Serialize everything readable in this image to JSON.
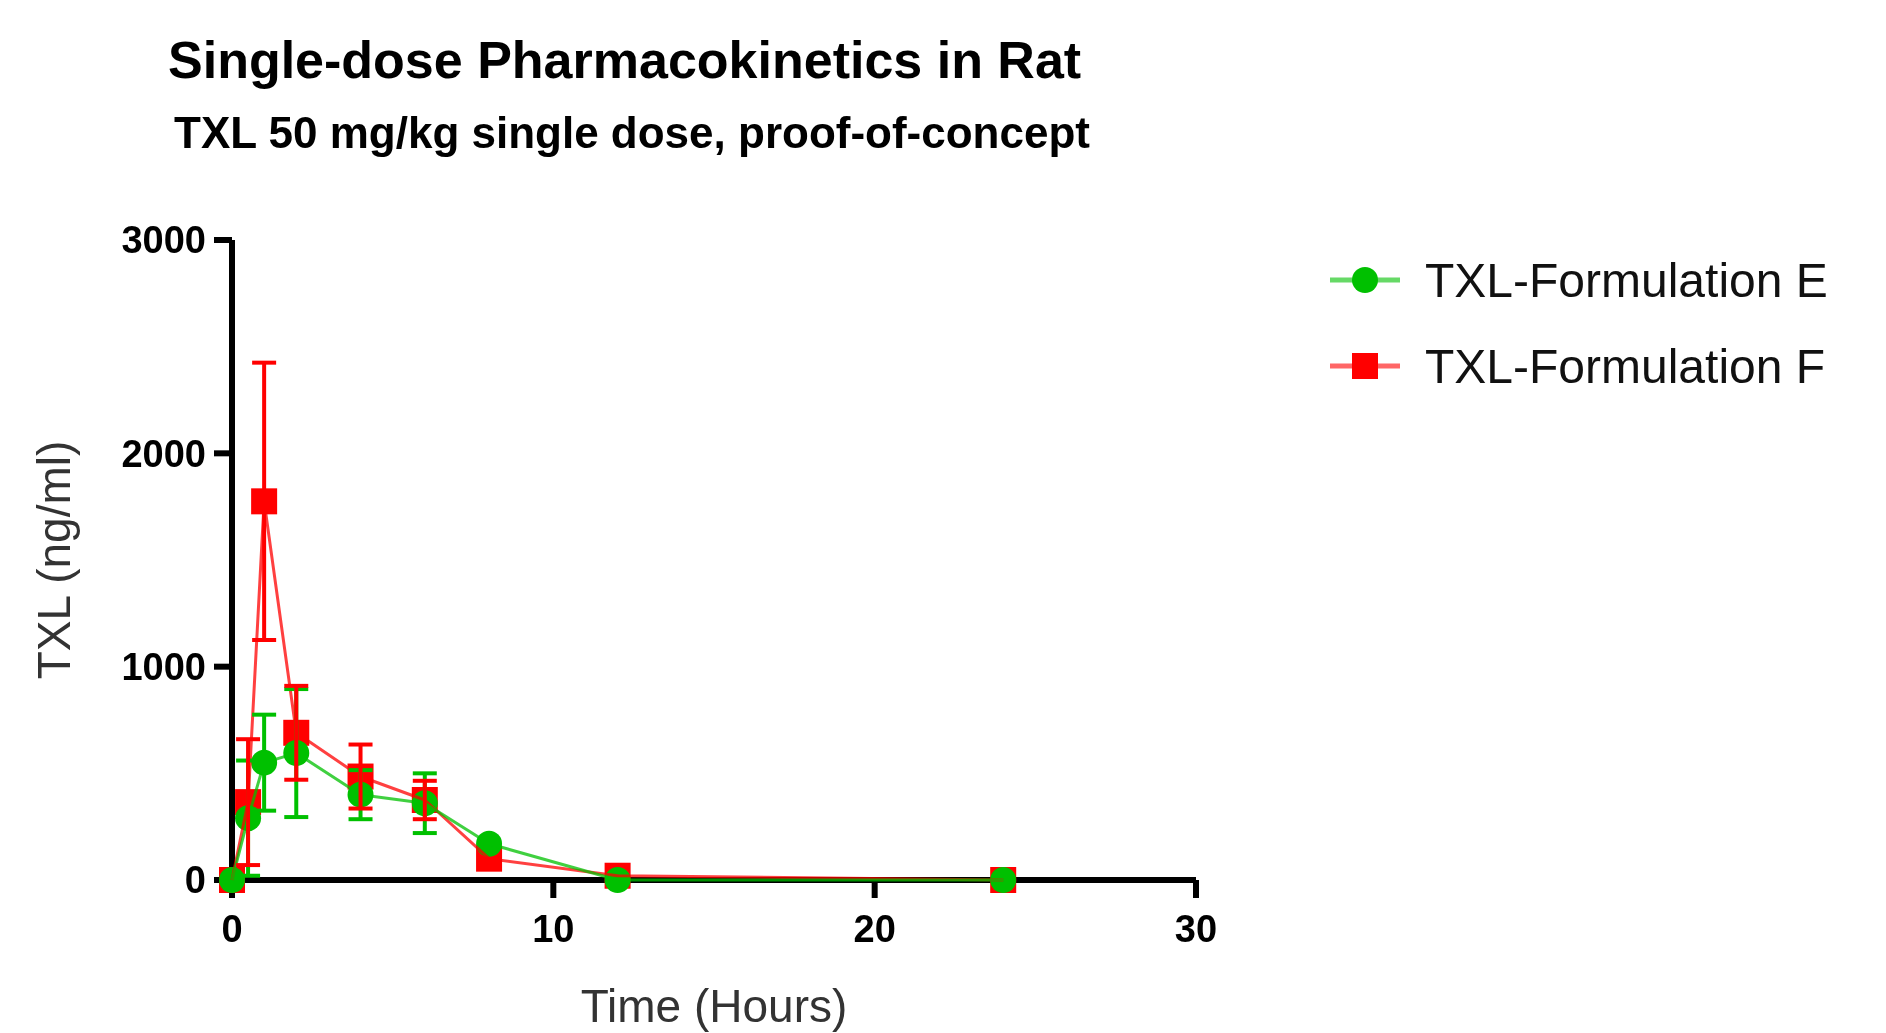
{
  "chart_data": {
    "type": "line",
    "title": "Single-dose Pharmacokinetics in Rat",
    "subtitle": "TXL 50 mg/kg single dose, proof-of-concept",
    "xlabel": "Time (Hours)",
    "ylabel": "TXL (ng/ml)",
    "x": [
      0,
      0.5,
      1,
      2,
      4,
      6,
      8,
      12,
      24
    ],
    "series": [
      {
        "name": "TXL-Formulation E",
        "color": "#00c000",
        "marker": "circle",
        "values": [
          0,
          290,
          550,
          595,
          400,
          360,
          170,
          0,
          0
        ],
        "errors": [
          null,
          270,
          225,
          300,
          115,
          140,
          null,
          null,
          null
        ]
      },
      {
        "name": "TXL-Formulation F",
        "color": "#ff0000",
        "marker": "square",
        "values": [
          0,
          365,
          1775,
          690,
          485,
          375,
          100,
          20,
          0
        ],
        "errors": [
          null,
          295,
          650,
          220,
          150,
          90,
          null,
          null,
          null
        ]
      }
    ],
    "xlim": [
      0,
      30
    ],
    "xticks": [
      0,
      10,
      20,
      30
    ],
    "ylim": [
      0,
      3000
    ],
    "yticks": [
      0,
      1000,
      2000,
      3000
    ],
    "grid": false,
    "legend": "right",
    "line_style": "solid"
  }
}
